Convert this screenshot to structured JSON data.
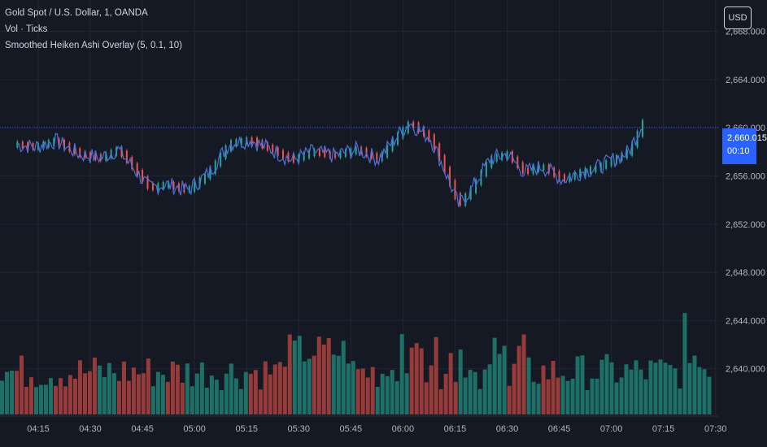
{
  "legend": {
    "symbol": "Gold Spot / U.S. Dollar, 1, OANDA",
    "volume": "Vol · Ticks",
    "indicator": "Smoothed Heiken Ashi Overlay (5, 0.1, 10)"
  },
  "price_axis": {
    "currency": "USD",
    "last_price": "2,660.015",
    "countdown": "00:10"
  },
  "colors": {
    "background": "#151924",
    "grid": "#232632",
    "up": "#26a69a",
    "down": "#ef5350",
    "line": "#4a6fd8",
    "current_price": "#2962ff"
  },
  "chart_data": {
    "type": "line",
    "title": "Gold Spot / U.S. Dollar, 1, OANDA",
    "x_ticks": [
      "04:15",
      "04:30",
      "04:45",
      "05:00",
      "05:15",
      "05:30",
      "05:45",
      "06:00",
      "06:15",
      "06:30",
      "06:45",
      "07:00",
      "07:15",
      "07:30"
    ],
    "y_ticks": [
      "2,668.000",
      "2,664.000",
      "2,660.000",
      "2,656.000",
      "2,652.000",
      "2,648.000",
      "2,644.000",
      "2,640.000"
    ],
    "y_tick_values": [
      2668,
      2664,
      2660,
      2656,
      2652,
      2648,
      2644,
      2640
    ],
    "ylim": [
      2636.2,
      2670.6
    ],
    "x_minutes_range": [
      244,
      451
    ],
    "current_price": 2660.015,
    "price_anchors": {
      "x": [
        "04:09",
        "04:14",
        "04:20",
        "04:27",
        "04:33",
        "04:38",
        "04:42",
        "04:47",
        "04:52",
        "04:58",
        "05:04",
        "05:10",
        "05:16",
        "05:22",
        "05:28",
        "05:34",
        "05:40",
        "05:47",
        "05:53",
        "05:58",
        "06:02",
        "06:08",
        "06:12",
        "06:16",
        "06:20",
        "06:25",
        "06:30",
        "06:35",
        "06:40",
        "06:46",
        "06:51",
        "06:56",
        "07:01",
        "07:05",
        "07:09"
      ],
      "y": [
        2658.6,
        2658.4,
        2658.9,
        2657.8,
        2657.5,
        2658.2,
        2656.8,
        2655.0,
        2655.3,
        2654.8,
        2656.2,
        2658.7,
        2659.0,
        2658.2,
        2657.3,
        2658.0,
        2657.7,
        2658.2,
        2657.4,
        2659.2,
        2660.4,
        2659.1,
        2656.5,
        2653.6,
        2655.0,
        2657.4,
        2657.8,
        2656.3,
        2656.8,
        2655.7,
        2656.3,
        2656.7,
        2657.4,
        2658.0,
        2660.4
      ]
    },
    "volume": {
      "label": "Vol · Ticks",
      "bars": 146,
      "x_range_minutes": [
        244,
        449
      ]
    }
  }
}
